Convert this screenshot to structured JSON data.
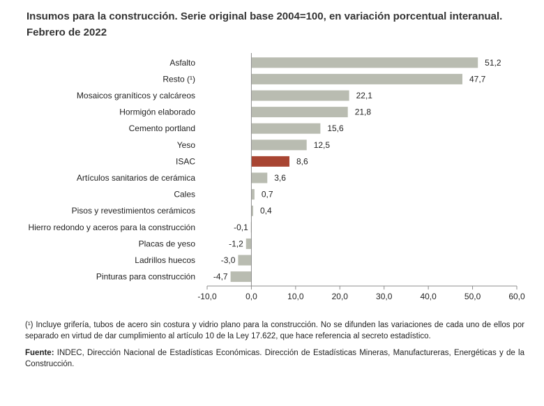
{
  "title_line1": "Insumos para la construcción. Serie original base 2004=100, en variación porcentual interanual.",
  "title_line2": "Febrero de 2022",
  "chart_data": {
    "type": "bar",
    "orientation": "horizontal",
    "categories": [
      "Asfalto",
      "Resto (¹)",
      "Mosaicos graníticos y calcáreos",
      "Hormigón elaborado",
      "Cemento portland",
      "Yeso",
      "ISAC",
      "Artículos sanitarios de cerámica",
      "Cales",
      "Pisos y revestimientos cerámicos",
      "Hierro redondo y aceros para la construcción",
      "Placas de yeso",
      "Ladrillos huecos",
      "Pinturas para construcción"
    ],
    "values": [
      51.2,
      47.7,
      22.1,
      21.8,
      15.6,
      12.5,
      8.6,
      3.6,
      0.7,
      0.4,
      -0.1,
      -1.2,
      -3.0,
      -4.7
    ],
    "value_labels": [
      "51,2",
      "47,7",
      "22,1",
      "21,8",
      "15,6",
      "12,5",
      "8,6",
      "3,6",
      "0,7",
      "0,4",
      "-0,1",
      "-1,2",
      "-3,0",
      "-4,7"
    ],
    "highlight_category": "ISAC",
    "xlim": [
      -10,
      60
    ],
    "x_ticks": [
      -10,
      0,
      10,
      20,
      30,
      40,
      50,
      60
    ],
    "x_tick_labels": [
      "-10,0",
      "0,0",
      "10,0",
      "20,0",
      "30,0",
      "40,0",
      "50,0",
      "60,0"
    ],
    "grid": false,
    "colors": {
      "bar": "#b9bcb1",
      "highlight": "#a84532",
      "axis": "#8c8c8c"
    }
  },
  "notes": {
    "footnote": "(¹) Incluye grifería, tubos de acero sin costura y vidrio plano para la construcción. No se difunden las variaciones de cada uno de ellos por separado en virtud de dar cumplimiento al artículo 10 de la Ley 17.622, que hace referencia al secreto estadístico.",
    "source_label": "Fuente:",
    "source_text": " INDEC, Dirección Nacional de Estadísticas Económicas. Dirección de Estadísticas Mineras, Manufactureras, Energéticas y de la Construcción."
  }
}
